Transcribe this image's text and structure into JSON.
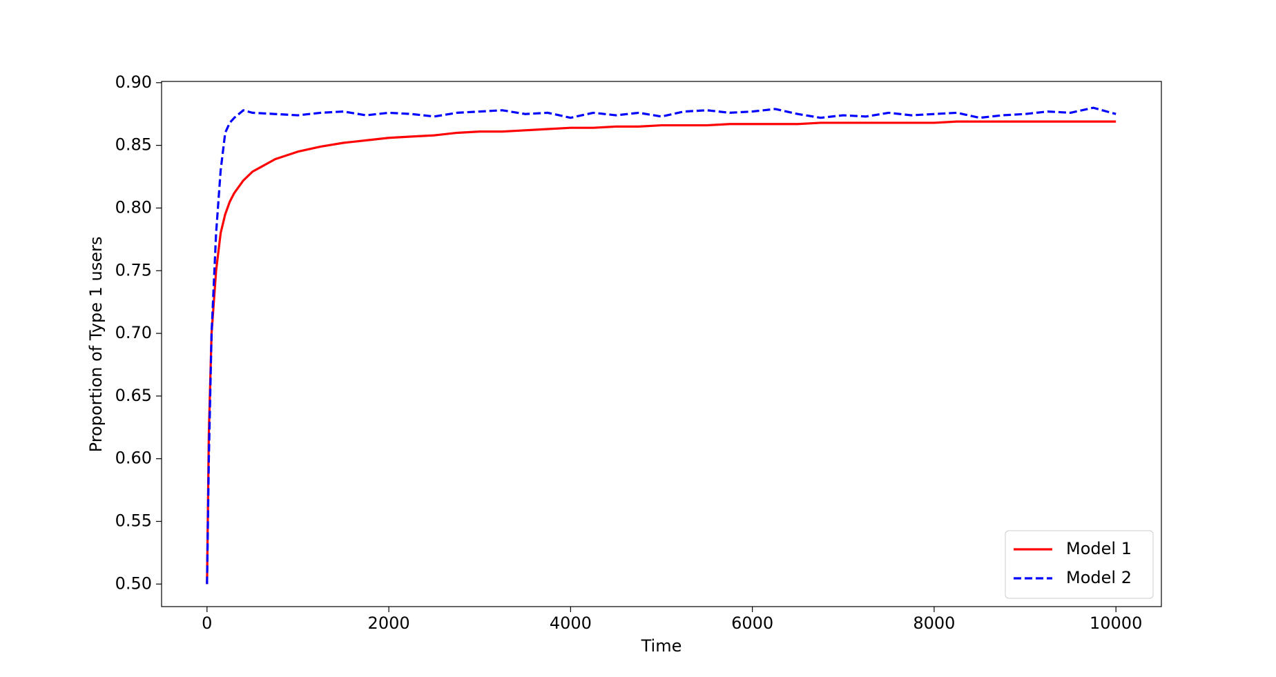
{
  "chart_data": {
    "type": "line",
    "x_label": "Time",
    "y_label": "Proportion of Type 1 users",
    "x": [
      0,
      20,
      50,
      100,
      150,
      200,
      250,
      300,
      400,
      500,
      750,
      1000,
      1250,
      1500,
      1750,
      2000,
      2250,
      2500,
      2750,
      3000,
      3250,
      3500,
      3750,
      4000,
      4250,
      4500,
      4750,
      5000,
      5250,
      5500,
      5750,
      6000,
      6250,
      6500,
      6750,
      7000,
      7250,
      7500,
      7750,
      8000,
      8250,
      8500,
      8750,
      9000,
      9250,
      9500,
      9750,
      10000
    ],
    "series": [
      {
        "name": "Model 1",
        "color": "#ff0000",
        "dash": "solid",
        "values": [
          0.5,
          0.62,
          0.7,
          0.75,
          0.78,
          0.795,
          0.805,
          0.812,
          0.822,
          0.829,
          0.839,
          0.845,
          0.849,
          0.852,
          0.854,
          0.856,
          0.857,
          0.858,
          0.86,
          0.861,
          0.861,
          0.862,
          0.863,
          0.864,
          0.864,
          0.865,
          0.865,
          0.866,
          0.866,
          0.866,
          0.867,
          0.867,
          0.867,
          0.867,
          0.868,
          0.868,
          0.868,
          0.868,
          0.868,
          0.868,
          0.869,
          0.869,
          0.869,
          0.869,
          0.869,
          0.869,
          0.869,
          0.869
        ]
      },
      {
        "name": "Model 2",
        "color": "#0000ff",
        "dash": "dashed",
        "values": [
          0.5,
          0.6,
          0.7,
          0.78,
          0.83,
          0.86,
          0.868,
          0.872,
          0.878,
          0.876,
          0.875,
          0.874,
          0.876,
          0.877,
          0.874,
          0.876,
          0.875,
          0.873,
          0.876,
          0.877,
          0.878,
          0.875,
          0.876,
          0.872,
          0.876,
          0.874,
          0.876,
          0.873,
          0.877,
          0.878,
          0.876,
          0.877,
          0.879,
          0.875,
          0.872,
          0.874,
          0.873,
          0.876,
          0.874,
          0.875,
          0.876,
          0.872,
          0.874,
          0.875,
          0.877,
          0.876,
          0.88,
          0.875
        ]
      }
    ],
    "xlim": [
      -500,
      10500
    ],
    "xticks": [
      0,
      2000,
      4000,
      6000,
      8000,
      10000
    ],
    "ylim": [
      0.482,
      0.901
    ],
    "yticks": [
      {
        "value": 0.5,
        "label": "0.50"
      },
      {
        "value": 0.55,
        "label": "0.55"
      },
      {
        "value": 0.6,
        "label": "0.60"
      },
      {
        "value": 0.65,
        "label": "0.65"
      },
      {
        "value": 0.7,
        "label": "0.70"
      },
      {
        "value": 0.75,
        "label": "0.75"
      },
      {
        "value": 0.8,
        "label": "0.80"
      },
      {
        "value": 0.85,
        "label": "0.85"
      },
      {
        "value": 0.9,
        "label": "0.90"
      }
    ],
    "grid": false,
    "legend": "lower right"
  }
}
